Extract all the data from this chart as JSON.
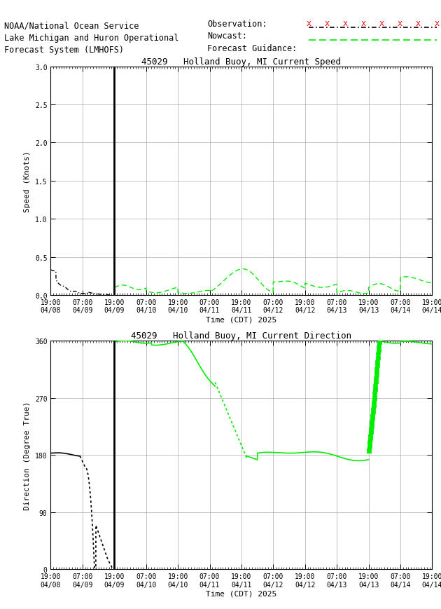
{
  "title_speed": "45029   Holland Buoy, MI Current Speed",
  "title_dir": "45029   Holland Buoy, MI Current Direction",
  "xlabel": "Time (CDT) 2025",
  "ylabel_speed": "Speed (Knots)",
  "ylabel_dir": "Direction (Degree True)",
  "header_line1": "NOAA/National Ocean Service",
  "header_line2": "Lake Michigan and Huron Operational",
  "header_line3": "Forecast System (LMHOFS)",
  "legend_obs": "Observation:",
  "legend_now": "Nowcast:",
  "legend_fcst": "Forecast Guidance:",
  "speed_ylim": [
    0,
    3.0
  ],
  "speed_yticks": [
    0.0,
    0.5,
    1.0,
    1.5,
    2.0,
    2.5,
    3.0
  ],
  "dir_ylim": [
    0,
    360
  ],
  "dir_yticks": [
    0,
    90,
    180,
    270,
    360
  ],
  "bg_color": "#ffffff",
  "grid_color": "#aaaaaa",
  "obs_color": "#000000",
  "nowcast_color": "#000000",
  "fcst_color": "#00ee00",
  "vline_color": "#000000",
  "tick_label_fontsize": 7,
  "axis_label_fontsize": 8,
  "title_fontsize": 9,
  "header_fontsize": 8.5
}
